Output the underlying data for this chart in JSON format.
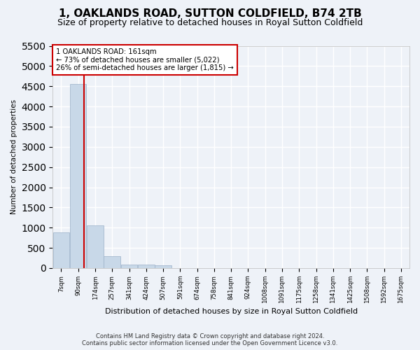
{
  "title": "1, OAKLANDS ROAD, SUTTON COLDFIELD, B74 2TB",
  "subtitle": "Size of property relative to detached houses in Royal Sutton Coldfield",
  "xlabel": "Distribution of detached houses by size in Royal Sutton Coldfield",
  "ylabel": "Number of detached properties",
  "footer_line1": "Contains HM Land Registry data © Crown copyright and database right 2024.",
  "footer_line2": "Contains public sector information licensed under the Open Government Licence v3.0.",
  "annotation_title": "1 OAKLANDS ROAD: 161sqm",
  "annotation_line1": "← 73% of detached houses are smaller (5,022)",
  "annotation_line2": "26% of semi-detached houses are larger (1,815) →",
  "bar_color": "#c8d8e8",
  "bar_edge_color": "#9ab0c8",
  "vline_color": "#cc0000",
  "vline_x": 161,
  "categories": [
    "7sqm",
    "90sqm",
    "174sqm",
    "257sqm",
    "341sqm",
    "424sqm",
    "507sqm",
    "591sqm",
    "674sqm",
    "758sqm",
    "841sqm",
    "924sqm",
    "1008sqm",
    "1091sqm",
    "1175sqm",
    "1258sqm",
    "1341sqm",
    "1425sqm",
    "1508sqm",
    "1592sqm",
    "1675sqm"
  ],
  "bin_left_edges": [
    7,
    90,
    174,
    257,
    341,
    424,
    507,
    591,
    674,
    758,
    841,
    924,
    1008,
    1091,
    1175,
    1258,
    1341,
    1425,
    1508,
    1592,
    1675
  ],
  "values": [
    880,
    4560,
    1060,
    290,
    90,
    90,
    60,
    0,
    0,
    0,
    0,
    0,
    0,
    0,
    0,
    0,
    0,
    0,
    0,
    0,
    0
  ],
  "bin_width": 83,
  "ylim": [
    0,
    5500
  ],
  "yticks": [
    0,
    500,
    1000,
    1500,
    2000,
    2500,
    3000,
    3500,
    4000,
    4500,
    5000,
    5500
  ],
  "bg_color": "#eef2f8",
  "grid_color": "#ffffff",
  "title_fontsize": 11,
  "subtitle_fontsize": 9,
  "annotation_box_face": "#ffffff",
  "annotation_box_edge": "#cc0000"
}
